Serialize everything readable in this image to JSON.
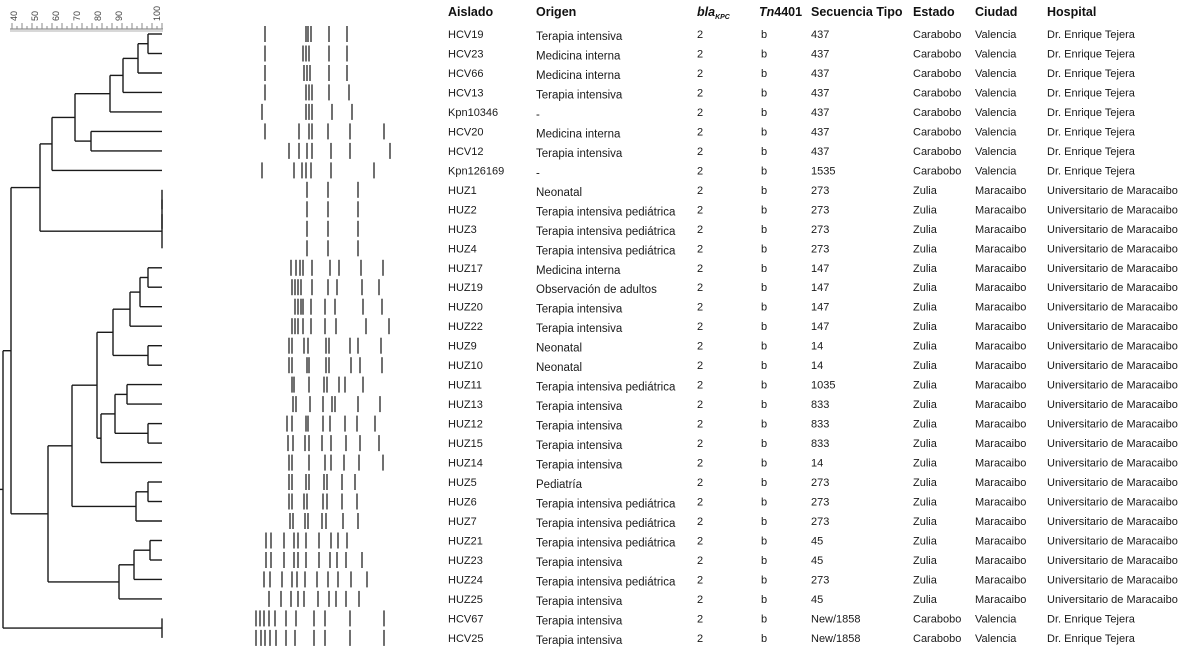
{
  "scale": {
    "ticks": [
      "40",
      "50",
      "60",
      "70",
      "80",
      "90",
      "100"
    ]
  },
  "table": {
    "headers": {
      "aislado": "Aislado",
      "origen": "Origen",
      "bla_main": "bla",
      "bla_sub": "KPC",
      "tn_prefix": "Tn",
      "tn_number": "4401",
      "secuencia": "Secuencia Tipo",
      "estado": "Estado",
      "ciudad": "Ciudad",
      "hospital": "Hospital"
    },
    "rows": [
      {
        "aislado": "HCV19",
        "origen": "Terapia intensiva",
        "bla": "2",
        "tn": "b",
        "st": "437",
        "estado": "Carabobo",
        "ciudad": "Valencia",
        "hospital": "Dr. Enrique Tejera"
      },
      {
        "aislado": "HCV23",
        "origen": "Medicina interna",
        "bla": "2",
        "tn": "b",
        "st": "437",
        "estado": "Carabobo",
        "ciudad": "Valencia",
        "hospital": "Dr. Enrique Tejera"
      },
      {
        "aislado": "HCV66",
        "origen": "Medicina interna",
        "bla": "2",
        "tn": "b",
        "st": "437",
        "estado": "Carabobo",
        "ciudad": "Valencia",
        "hospital": "Dr. Enrique Tejera"
      },
      {
        "aislado": "HCV13",
        "origen": "Terapia intensiva",
        "bla": "2",
        "tn": "b",
        "st": "437",
        "estado": "Carabobo",
        "ciudad": "Valencia",
        "hospital": "Dr. Enrique Tejera"
      },
      {
        "aislado": "Kpn10346",
        "origen": "-",
        "bla": "2",
        "tn": "b",
        "st": "437",
        "estado": "Carabobo",
        "ciudad": "Valencia",
        "hospital": "Dr. Enrique Tejera"
      },
      {
        "aislado": "HCV20",
        "origen": "Medicina interna",
        "bla": "2",
        "tn": "b",
        "st": "437",
        "estado": "Carabobo",
        "ciudad": "Valencia",
        "hospital": "Dr. Enrique Tejera"
      },
      {
        "aislado": "HCV12",
        "origen": "Terapia intensiva",
        "bla": "2",
        "tn": "b",
        "st": "437",
        "estado": "Carabobo",
        "ciudad": "Valencia",
        "hospital": "Dr. Enrique Tejera"
      },
      {
        "aislado": "Kpn126169",
        "origen": "-",
        "bla": "2",
        "tn": "b",
        "st": "1535",
        "estado": "Carabobo",
        "ciudad": "Valencia",
        "hospital": "Dr. Enrique Tejera"
      },
      {
        "aislado": "HUZ1",
        "origen": "Neonatal",
        "bla": "2",
        "tn": "b",
        "st": "273",
        "estado": "Zulia",
        "ciudad": "Maracaibo",
        "hospital": "Universitario de Maracaibo"
      },
      {
        "aislado": "HUZ2",
        "origen": "Terapia intensiva pediátrica",
        "bla": "2",
        "tn": "b",
        "st": "273",
        "estado": "Zulia",
        "ciudad": "Maracaibo",
        "hospital": "Universitario de Maracaibo"
      },
      {
        "aislado": "HUZ3",
        "origen": "Terapia intensiva pediátrica",
        "bla": "2",
        "tn": "b",
        "st": "273",
        "estado": "Zulia",
        "ciudad": "Maracaibo",
        "hospital": "Universitario de Maracaibo"
      },
      {
        "aislado": "HUZ4",
        "origen": "Terapia intensiva pediátrica",
        "bla": "2",
        "tn": "b",
        "st": "273",
        "estado": "Zulia",
        "ciudad": "Maracaibo",
        "hospital": "Universitario de Maracaibo"
      },
      {
        "aislado": "HUZ17",
        "origen": "Medicina interna",
        "bla": "2",
        "tn": "b",
        "st": "147",
        "estado": "Zulia",
        "ciudad": "Maracaibo",
        "hospital": "Universitario de Maracaibo"
      },
      {
        "aislado": "HUZ19",
        "origen": "Observación de adultos",
        "bla": "2",
        "tn": "b",
        "st": "147",
        "estado": "Zulia",
        "ciudad": "Maracaibo",
        "hospital": "Universitario de Maracaibo"
      },
      {
        "aislado": "HUZ20",
        "origen": "Terapia intensiva",
        "bla": "2",
        "tn": "b",
        "st": "147",
        "estado": "Zulia",
        "ciudad": "Maracaibo",
        "hospital": "Universitario de Maracaibo"
      },
      {
        "aislado": "HUZ22",
        "origen": "Terapia intensiva",
        "bla": "2",
        "tn": "b",
        "st": "147",
        "estado": "Zulia",
        "ciudad": "Maracaibo",
        "hospital": "Universitario de Maracaibo"
      },
      {
        "aislado": "HUZ9",
        "origen": "Neonatal",
        "bla": "2",
        "tn": "b",
        "st": "14",
        "estado": "Zulia",
        "ciudad": "Maracaibo",
        "hospital": "Universitario de Maracaibo"
      },
      {
        "aislado": "HUZ10",
        "origen": "Neonatal",
        "bla": "2",
        "tn": "b",
        "st": "14",
        "estado": "Zulia",
        "ciudad": "Maracaibo",
        "hospital": "Universitario de Maracaibo"
      },
      {
        "aislado": "HUZ11",
        "origen": "Terapia intensiva pediátrica",
        "bla": "2",
        "tn": "b",
        "st": "1035",
        "estado": "Zulia",
        "ciudad": "Maracaibo",
        "hospital": "Universitario de Maracaibo"
      },
      {
        "aislado": "HUZ13",
        "origen": "Terapia intensiva",
        "bla": "2",
        "tn": "b",
        "st": "833",
        "estado": "Zulia",
        "ciudad": "Maracaibo",
        "hospital": "Universitario de Maracaibo"
      },
      {
        "aislado": "HUZ12",
        "origen": "Terapia intensiva",
        "bla": "2",
        "tn": "b",
        "st": "833",
        "estado": "Zulia",
        "ciudad": "Maracaibo",
        "hospital": "Universitario de Maracaibo"
      },
      {
        "aislado": "HUZ15",
        "origen": "Terapia intensiva",
        "bla": "2",
        "tn": "b",
        "st": "833",
        "estado": "Zulia",
        "ciudad": "Maracaibo",
        "hospital": "Universitario de Maracaibo"
      },
      {
        "aislado": "HUZ14",
        "origen": "Terapia intensiva",
        "bla": "2",
        "tn": "b",
        "st": "14",
        "estado": "Zulia",
        "ciudad": "Maracaibo",
        "hospital": "Universitario de Maracaibo"
      },
      {
        "aislado": "HUZ5",
        "origen": "Pediatría",
        "bla": "2",
        "tn": "b",
        "st": "273",
        "estado": "Zulia",
        "ciudad": "Maracaibo",
        "hospital": "Universitario de Maracaibo"
      },
      {
        "aislado": "HUZ6",
        "origen": "Terapia intensiva pediátrica",
        "bla": "2",
        "tn": "b",
        "st": "273",
        "estado": "Zulia",
        "ciudad": "Maracaibo",
        "hospital": "Universitario de Maracaibo"
      },
      {
        "aislado": "HUZ7",
        "origen": "Terapia intensiva pediátrica",
        "bla": "2",
        "tn": "b",
        "st": "273",
        "estado": "Zulia",
        "ciudad": "Maracaibo",
        "hospital": "Universitario de Maracaibo"
      },
      {
        "aislado": "HUZ21",
        "origen": "Terapia intensiva pediátrica",
        "bla": "2",
        "tn": "b",
        "st": "45",
        "estado": "Zulia",
        "ciudad": "Maracaibo",
        "hospital": "Universitario de Maracaibo"
      },
      {
        "aislado": "HUZ23",
        "origen": "Terapia intensiva",
        "bla": "2",
        "tn": "b",
        "st": "45",
        "estado": "Zulia",
        "ciudad": "Maracaibo",
        "hospital": "Universitario de Maracaibo"
      },
      {
        "aislado": "HUZ24",
        "origen": "Terapia intensiva pediátrica",
        "bla": "2",
        "tn": "b",
        "st": "273",
        "estado": "Zulia",
        "ciudad": "Maracaibo",
        "hospital": "Universitario de Maracaibo"
      },
      {
        "aislado": "HUZ25",
        "origen": "Terapia intensiva",
        "bla": "2",
        "tn": "b",
        "st": "45",
        "estado": "Zulia",
        "ciudad": "Maracaibo",
        "hospital": "Universitario de Maracaibo"
      },
      {
        "aislado": "HCV67",
        "origen": "Terapia intensiva",
        "bla": "2",
        "tn": "b",
        "st": "New/1858",
        "estado": "Carabobo",
        "ciudad": "Valencia",
        "hospital": "Dr. Enrique Tejera"
      },
      {
        "aislado": "HCV25",
        "origen": "Terapia intensiva",
        "bla": "2",
        "tn": "b",
        "st": "New/1858",
        "estado": "Carabobo",
        "ciudad": "Valencia",
        "hospital": "Dr. Enrique Tejera"
      }
    ]
  },
  "gel": {
    "bands": [
      [
        265,
        306,
        308,
        311,
        329,
        347
      ],
      [
        265,
        303,
        306,
        309,
        329,
        347
      ],
      [
        265,
        304,
        307,
        310,
        329,
        347
      ],
      [
        265,
        306,
        309,
        312,
        329,
        349
      ],
      [
        262,
        306,
        309,
        312,
        332,
        352
      ],
      [
        265,
        299,
        309,
        312,
        328,
        350,
        384
      ],
      [
        289,
        299,
        307,
        312,
        331,
        350,
        390
      ],
      [
        262,
        294,
        302,
        306,
        311,
        331,
        374
      ],
      [
        307,
        328,
        358
      ],
      [
        307,
        328,
        358
      ],
      [
        307,
        328,
        358
      ],
      [
        307,
        328,
        358
      ],
      [
        291,
        296,
        300,
        303,
        312,
        330,
        339,
        361,
        383
      ],
      [
        292,
        295,
        298,
        301,
        312,
        328,
        337,
        362,
        379
      ],
      [
        295,
        298,
        301,
        303,
        311,
        325,
        335,
        363,
        382
      ],
      [
        292,
        295,
        298,
        303,
        311,
        325,
        336,
        366,
        389
      ],
      [
        289,
        292,
        304,
        308,
        326,
        329,
        350,
        358,
        381
      ],
      [
        289,
        292,
        307,
        309,
        326,
        329,
        351,
        360,
        382
      ],
      [
        292,
        294,
        309,
        324,
        327,
        339,
        345,
        363
      ],
      [
        293,
        296,
        310,
        323,
        332,
        335,
        358,
        380
      ],
      [
        287,
        292,
        306,
        308,
        323,
        330,
        345,
        357,
        375
      ],
      [
        288,
        293,
        305,
        309,
        322,
        331,
        346,
        360,
        379
      ],
      [
        289,
        292,
        309,
        325,
        331,
        344,
        359,
        383
      ],
      [
        289,
        292,
        306,
        309,
        324,
        327,
        342,
        355
      ],
      [
        289,
        292,
        304,
        307,
        323,
        327,
        342,
        357
      ],
      [
        290,
        293,
        305,
        308,
        322,
        326,
        343,
        358
      ],
      [
        266,
        271,
        284,
        294,
        298,
        306,
        319,
        331,
        338,
        347
      ],
      [
        266,
        271,
        284,
        294,
        298,
        306,
        319,
        330,
        337,
        346,
        362
      ],
      [
        264,
        270,
        282,
        292,
        297,
        305,
        317,
        328,
        338,
        351,
        367
      ],
      [
        269,
        281,
        291,
        298,
        304,
        318,
        329,
        336,
        346,
        359
      ],
      [
        256,
        260,
        264,
        269,
        275,
        286,
        296,
        314,
        325,
        350,
        384
      ],
      [
        256,
        261,
        265,
        270,
        276,
        286,
        295,
        314,
        325,
        350,
        384
      ]
    ]
  }
}
